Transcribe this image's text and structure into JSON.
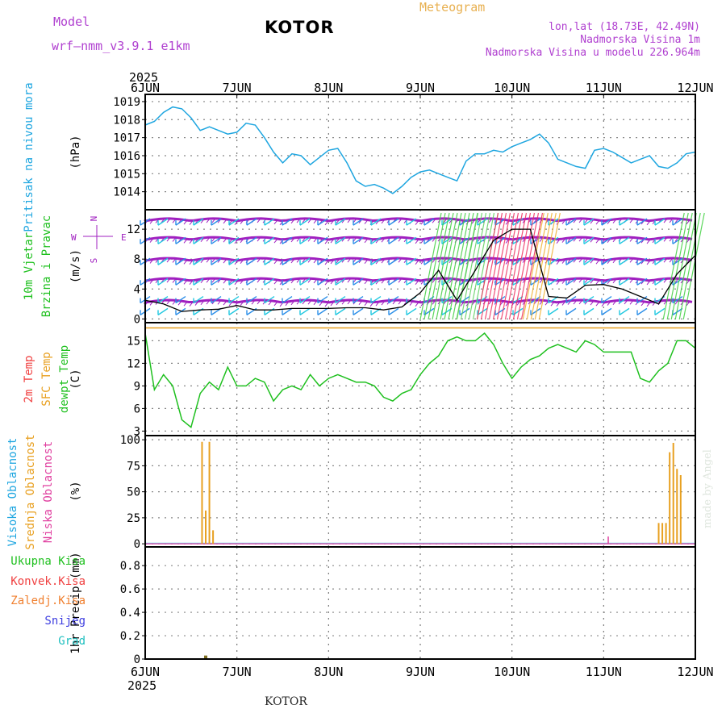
{
  "header": {
    "model_label": "Model",
    "model_name": "wrf—nmm_v3.9.1  e1km",
    "station": "KOTOR",
    "meteogram": "Meteogram",
    "lonlat": "lon,lat (18.73E, 42.49N)",
    "altitude": "Nadmorska Visina 1m",
    "model_altitude": "Nadmorska Visina u modelu 226.964m"
  },
  "footer": {
    "station": "KOTOR",
    "credit": "made by Angel"
  },
  "time_axis": {
    "year": "2025",
    "labels": [
      "6JUN",
      "7JUN",
      "8JUN",
      "9JUN",
      "10JUN",
      "11JUN",
      "12JUN"
    ]
  },
  "colors": {
    "pressure": "#1fa6e0",
    "wind_label": "#1fc01f",
    "temp2m": "#f04040",
    "sfc_temp": "#e8a020",
    "dewpoint": "#1fc01f",
    "high_cloud": "#1fa6e0",
    "mid_cloud": "#e8a020",
    "low_cloud": "#e040a0",
    "total_precip": "#1fc01f",
    "conv_precip": "#f04040",
    "frozen_precip": "#f08030",
    "snow": "#4040e0",
    "hail": "#20c0c0",
    "wind_speed_magenta": "#a020c0"
  },
  "chart_data": [
    {
      "type": "line",
      "ylabel": "(hPa)",
      "side_labels": [
        "Pritisak na nivou mora"
      ],
      "yticks": [
        1014,
        1015,
        1016,
        1017,
        1018,
        1019
      ],
      "ylim": [
        1013,
        1019.4
      ],
      "x_days": [
        0,
        0.1,
        0.2,
        0.3,
        0.4,
        0.5,
        0.6,
        0.7,
        0.8,
        0.9,
        1.0,
        1.1,
        1.2,
        1.3,
        1.4,
        1.5,
        1.6,
        1.7,
        1.8,
        1.9,
        2.0,
        2.1,
        2.2,
        2.3,
        2.4,
        2.5,
        2.6,
        2.7,
        2.8,
        2.9,
        3.0,
        3.1,
        3.2,
        3.3,
        3.4,
        3.5,
        3.6,
        3.7,
        3.8,
        3.9,
        4.0,
        4.1,
        4.2,
        4.3,
        4.4,
        4.5,
        4.6,
        4.7,
        4.8,
        4.9,
        5.0,
        5.1,
        5.2,
        5.3,
        5.4,
        5.5,
        5.6,
        5.7,
        5.8,
        5.9,
        6.0
      ],
      "series": [
        {
          "values": [
            1017.7,
            1017.9,
            1018.4,
            1018.7,
            1018.6,
            1018.1,
            1017.4,
            1017.6,
            1017.4,
            1017.2,
            1017.3,
            1017.8,
            1017.7,
            1017.0,
            1016.2,
            1015.6,
            1016.1,
            1016.0,
            1015.5,
            1015.9,
            1016.3,
            1016.4,
            1015.6,
            1014.6,
            1014.3,
            1014.4,
            1014.2,
            1013.9,
            1014.3,
            1014.8,
            1015.1,
            1015.2,
            1015.0,
            1014.8,
            1014.6,
            1015.7,
            1016.1,
            1016.1,
            1016.3,
            1016.2,
            1016.5,
            1016.7,
            1016.9,
            1017.2,
            1016.7,
            1015.8,
            1015.6,
            1015.4,
            1015.3,
            1016.3,
            1016.4,
            1016.2,
            1015.9,
            1015.6,
            1015.8,
            1016.0,
            1015.4,
            1015.3,
            1015.6,
            1016.1,
            1016.2
          ]
        }
      ]
    },
    {
      "type": "line",
      "ylabel": "(m/s)",
      "side_labels": [
        "10m Vjetar",
        "Brzina i Pravac"
      ],
      "compass": {
        "n": "N",
        "s": "S",
        "e": "E",
        "w": "W"
      },
      "yticks": [
        0,
        4,
        8,
        12
      ],
      "ylim": [
        -0.5,
        14.6
      ],
      "x_days": [
        0,
        0.2,
        0.4,
        0.6,
        0.8,
        1.0,
        1.2,
        1.4,
        1.6,
        1.8,
        2.0,
        2.2,
        2.4,
        2.6,
        2.8,
        3.0,
        3.2,
        3.4,
        3.6,
        3.8,
        4.0,
        4.2,
        4.4,
        4.6,
        4.8,
        5.0,
        5.2,
        5.4,
        5.6,
        5.8,
        6.0
      ],
      "series": [
        {
          "values": [
            2.5,
            2.0,
            1.0,
            1.2,
            1.3,
            1.8,
            1.2,
            1.2,
            1.4,
            1.4,
            1.4,
            1.5,
            1.5,
            1.2,
            1.6,
            3.5,
            6.5,
            2.5,
            6.5,
            10.5,
            12.0,
            12.0,
            3.0,
            2.8,
            4.5,
            4.6,
            4.0,
            3.0,
            2.0,
            6.0,
            8.5
          ]
        }
      ]
    },
    {
      "type": "line",
      "ylabel": "(C)",
      "side_labels": [
        "2m Temp",
        "SFC Temp",
        "dewpt Temp"
      ],
      "yticks": [
        3,
        6,
        9,
        12,
        15
      ],
      "ylim": [
        2.4,
        17.4
      ],
      "x_days": [
        0,
        0.1,
        0.2,
        0.3,
        0.4,
        0.5,
        0.6,
        0.7,
        0.8,
        0.9,
        1.0,
        1.1,
        1.2,
        1.3,
        1.4,
        1.5,
        1.6,
        1.7,
        1.8,
        1.9,
        2.0,
        2.1,
        2.2,
        2.3,
        2.4,
        2.5,
        2.6,
        2.7,
        2.8,
        2.9,
        3.0,
        3.1,
        3.2,
        3.3,
        3.4,
        3.5,
        3.6,
        3.7,
        3.8,
        3.9,
        4.0,
        4.1,
        4.2,
        4.3,
        4.4,
        4.5,
        4.6,
        4.7,
        4.8,
        4.9,
        5.0,
        5.1,
        5.2,
        5.3,
        5.4,
        5.5,
        5.6,
        5.7,
        5.8,
        5.9,
        6.0
      ],
      "series": [
        {
          "values": [
            16.0,
            8.5,
            10.5,
            9.0,
            4.5,
            3.5,
            8.0,
            9.5,
            8.5,
            11.5,
            9.0,
            9.0,
            10.0,
            9.5,
            7.0,
            8.5,
            9.0,
            8.5,
            10.5,
            9.0,
            10.0,
            10.5,
            10.0,
            9.5,
            9.5,
            9.0,
            7.5,
            7.0,
            8.0,
            8.5,
            10.5,
            12.0,
            13.0,
            15.0,
            15.5,
            15.0,
            15.0,
            16.0,
            14.5,
            12.0,
            10.0,
            11.5,
            12.5,
            13.0,
            14.0,
            14.5,
            14.0,
            13.5,
            15.0,
            14.5,
            13.5,
            13.5,
            13.5,
            13.5,
            10.0,
            9.5,
            11.0,
            12.0,
            15.0,
            15.0,
            14.0
          ]
        },
        {
          "values": [
            16.7,
            16.7,
            16.7,
            16.7,
            16.7,
            16.7,
            16.7,
            16.7,
            16.7,
            16.7,
            16.7,
            16.7,
            16.7,
            16.7,
            16.7,
            16.7,
            16.7,
            16.7,
            16.7,
            16.7,
            16.7,
            16.7,
            16.7,
            16.7,
            16.7,
            16.7,
            16.7,
            16.7,
            16.7,
            16.7,
            16.7,
            16.7,
            16.7,
            16.7,
            16.7,
            16.7,
            16.7,
            16.7,
            16.7,
            16.7,
            16.7,
            16.7,
            16.7,
            16.7,
            16.7,
            16.7,
            16.7,
            16.7,
            16.7,
            16.7,
            16.7,
            16.7,
            16.7,
            16.7,
            16.7,
            16.7,
            16.7,
            16.7,
            16.7,
            16.7,
            16.7
          ]
        }
      ]
    },
    {
      "type": "bar",
      "ylabel": "(%)",
      "side_labels": [
        "Visoka Oblacnost",
        "Srednja Oblacnost",
        "Niska  Oblacnost"
      ],
      "yticks": [
        0,
        25,
        50,
        75,
        100
      ],
      "ylim": [
        -3,
        104
      ],
      "series": [
        {
          "x_days": [
            0.62,
            0.66,
            0.7,
            0.74,
            5.6,
            5.64,
            5.68,
            5.72,
            5.76,
            5.8,
            5.84
          ],
          "values": [
            98,
            32,
            98,
            13,
            20,
            20,
            20,
            88,
            97,
            72,
            66
          ]
        },
        {
          "x_days": [
            5.05
          ],
          "values": [
            7
          ]
        }
      ]
    },
    {
      "type": "bar",
      "ylabel": "1hr Precip (mm)",
      "side_labels": [
        "Ukupna  Kisa",
        "Konvek.Kisa",
        "Zaledj.Kisa",
        "Snijeg",
        "Grad"
      ],
      "yticks": [
        "0",
        "0.2",
        "0.4",
        "0.6",
        "0.8"
      ],
      "ylim": [
        0,
        0.96
      ],
      "series": [
        {
          "x_days": [
            0.66
          ],
          "values": [
            0.03
          ]
        }
      ]
    }
  ]
}
